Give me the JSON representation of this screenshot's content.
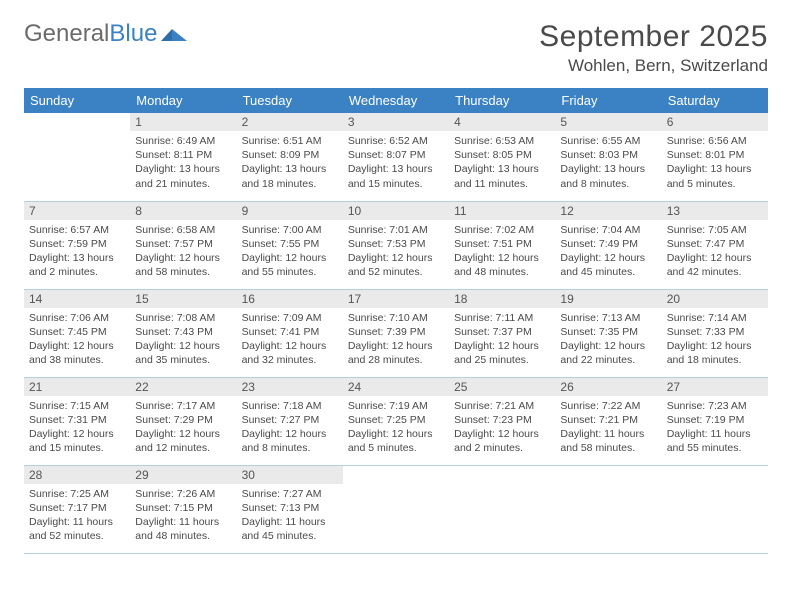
{
  "logo": {
    "word1": "General",
    "word2": "Blue"
  },
  "title": "September 2025",
  "location": "Wohlen, Bern, Switzerland",
  "colors": {
    "header_bg": "#3b82c4",
    "header_text": "#ffffff",
    "day_header_bg": "#eaeaea",
    "border": "#b8cde0",
    "text": "#4a4a4a"
  },
  "daysOfWeek": [
    "Sunday",
    "Monday",
    "Tuesday",
    "Wednesday",
    "Thursday",
    "Friday",
    "Saturday"
  ],
  "weeks": [
    [
      {
        "n": "",
        "sunrise": "",
        "sunset": "",
        "daylight": "",
        "empty": true
      },
      {
        "n": "1",
        "sunrise": "Sunrise: 6:49 AM",
        "sunset": "Sunset: 8:11 PM",
        "daylight": "Daylight: 13 hours and 21 minutes."
      },
      {
        "n": "2",
        "sunrise": "Sunrise: 6:51 AM",
        "sunset": "Sunset: 8:09 PM",
        "daylight": "Daylight: 13 hours and 18 minutes."
      },
      {
        "n": "3",
        "sunrise": "Sunrise: 6:52 AM",
        "sunset": "Sunset: 8:07 PM",
        "daylight": "Daylight: 13 hours and 15 minutes."
      },
      {
        "n": "4",
        "sunrise": "Sunrise: 6:53 AM",
        "sunset": "Sunset: 8:05 PM",
        "daylight": "Daylight: 13 hours and 11 minutes."
      },
      {
        "n": "5",
        "sunrise": "Sunrise: 6:55 AM",
        "sunset": "Sunset: 8:03 PM",
        "daylight": "Daylight: 13 hours and 8 minutes."
      },
      {
        "n": "6",
        "sunrise": "Sunrise: 6:56 AM",
        "sunset": "Sunset: 8:01 PM",
        "daylight": "Daylight: 13 hours and 5 minutes."
      }
    ],
    [
      {
        "n": "7",
        "sunrise": "Sunrise: 6:57 AM",
        "sunset": "Sunset: 7:59 PM",
        "daylight": "Daylight: 13 hours and 2 minutes."
      },
      {
        "n": "8",
        "sunrise": "Sunrise: 6:58 AM",
        "sunset": "Sunset: 7:57 PM",
        "daylight": "Daylight: 12 hours and 58 minutes."
      },
      {
        "n": "9",
        "sunrise": "Sunrise: 7:00 AM",
        "sunset": "Sunset: 7:55 PM",
        "daylight": "Daylight: 12 hours and 55 minutes."
      },
      {
        "n": "10",
        "sunrise": "Sunrise: 7:01 AM",
        "sunset": "Sunset: 7:53 PM",
        "daylight": "Daylight: 12 hours and 52 minutes."
      },
      {
        "n": "11",
        "sunrise": "Sunrise: 7:02 AM",
        "sunset": "Sunset: 7:51 PM",
        "daylight": "Daylight: 12 hours and 48 minutes."
      },
      {
        "n": "12",
        "sunrise": "Sunrise: 7:04 AM",
        "sunset": "Sunset: 7:49 PM",
        "daylight": "Daylight: 12 hours and 45 minutes."
      },
      {
        "n": "13",
        "sunrise": "Sunrise: 7:05 AM",
        "sunset": "Sunset: 7:47 PM",
        "daylight": "Daylight: 12 hours and 42 minutes."
      }
    ],
    [
      {
        "n": "14",
        "sunrise": "Sunrise: 7:06 AM",
        "sunset": "Sunset: 7:45 PM",
        "daylight": "Daylight: 12 hours and 38 minutes."
      },
      {
        "n": "15",
        "sunrise": "Sunrise: 7:08 AM",
        "sunset": "Sunset: 7:43 PM",
        "daylight": "Daylight: 12 hours and 35 minutes."
      },
      {
        "n": "16",
        "sunrise": "Sunrise: 7:09 AM",
        "sunset": "Sunset: 7:41 PM",
        "daylight": "Daylight: 12 hours and 32 minutes."
      },
      {
        "n": "17",
        "sunrise": "Sunrise: 7:10 AM",
        "sunset": "Sunset: 7:39 PM",
        "daylight": "Daylight: 12 hours and 28 minutes."
      },
      {
        "n": "18",
        "sunrise": "Sunrise: 7:11 AM",
        "sunset": "Sunset: 7:37 PM",
        "daylight": "Daylight: 12 hours and 25 minutes."
      },
      {
        "n": "19",
        "sunrise": "Sunrise: 7:13 AM",
        "sunset": "Sunset: 7:35 PM",
        "daylight": "Daylight: 12 hours and 22 minutes."
      },
      {
        "n": "20",
        "sunrise": "Sunrise: 7:14 AM",
        "sunset": "Sunset: 7:33 PM",
        "daylight": "Daylight: 12 hours and 18 minutes."
      }
    ],
    [
      {
        "n": "21",
        "sunrise": "Sunrise: 7:15 AM",
        "sunset": "Sunset: 7:31 PM",
        "daylight": "Daylight: 12 hours and 15 minutes."
      },
      {
        "n": "22",
        "sunrise": "Sunrise: 7:17 AM",
        "sunset": "Sunset: 7:29 PM",
        "daylight": "Daylight: 12 hours and 12 minutes."
      },
      {
        "n": "23",
        "sunrise": "Sunrise: 7:18 AM",
        "sunset": "Sunset: 7:27 PM",
        "daylight": "Daylight: 12 hours and 8 minutes."
      },
      {
        "n": "24",
        "sunrise": "Sunrise: 7:19 AM",
        "sunset": "Sunset: 7:25 PM",
        "daylight": "Daylight: 12 hours and 5 minutes."
      },
      {
        "n": "25",
        "sunrise": "Sunrise: 7:21 AM",
        "sunset": "Sunset: 7:23 PM",
        "daylight": "Daylight: 12 hours and 2 minutes."
      },
      {
        "n": "26",
        "sunrise": "Sunrise: 7:22 AM",
        "sunset": "Sunset: 7:21 PM",
        "daylight": "Daylight: 11 hours and 58 minutes."
      },
      {
        "n": "27",
        "sunrise": "Sunrise: 7:23 AM",
        "sunset": "Sunset: 7:19 PM",
        "daylight": "Daylight: 11 hours and 55 minutes."
      }
    ],
    [
      {
        "n": "28",
        "sunrise": "Sunrise: 7:25 AM",
        "sunset": "Sunset: 7:17 PM",
        "daylight": "Daylight: 11 hours and 52 minutes."
      },
      {
        "n": "29",
        "sunrise": "Sunrise: 7:26 AM",
        "sunset": "Sunset: 7:15 PM",
        "daylight": "Daylight: 11 hours and 48 minutes."
      },
      {
        "n": "30",
        "sunrise": "Sunrise: 7:27 AM",
        "sunset": "Sunset: 7:13 PM",
        "daylight": "Daylight: 11 hours and 45 minutes."
      },
      {
        "n": "",
        "sunrise": "",
        "sunset": "",
        "daylight": "",
        "empty": true
      },
      {
        "n": "",
        "sunrise": "",
        "sunset": "",
        "daylight": "",
        "empty": true
      },
      {
        "n": "",
        "sunrise": "",
        "sunset": "",
        "daylight": "",
        "empty": true
      },
      {
        "n": "",
        "sunrise": "",
        "sunset": "",
        "daylight": "",
        "empty": true
      }
    ]
  ]
}
